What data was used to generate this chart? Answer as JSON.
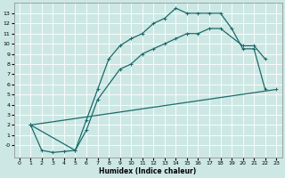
{
  "xlabel": "Humidex (Indice chaleur)",
  "xlim": [
    -0.5,
    23.5
  ],
  "ylim": [
    -1.2,
    14
  ],
  "yticks": [
    0,
    1,
    2,
    3,
    4,
    5,
    6,
    7,
    8,
    9,
    10,
    11,
    12,
    13
  ],
  "ytick_labels": [
    "-0",
    "1",
    "2",
    "3",
    "4",
    "5",
    "6",
    "7",
    "8",
    "9",
    "10",
    "11",
    "12",
    "13"
  ],
  "xticks": [
    0,
    1,
    2,
    3,
    4,
    5,
    6,
    7,
    8,
    9,
    10,
    11,
    12,
    13,
    14,
    15,
    16,
    17,
    18,
    19,
    20,
    21,
    22,
    23
  ],
  "xtick_labels": [
    "0",
    "1",
    "2",
    "3",
    "4",
    "5",
    "6",
    "7",
    "8",
    "9",
    "10",
    "11",
    "12",
    "13",
    "14",
    "15",
    "16",
    "17",
    "18",
    "19",
    "20",
    "21",
    "22",
    "23"
  ],
  "bg_color": "#cde8e4",
  "grid_color": "#ffffff",
  "line_color": "#1a6b6b",
  "line1_x": [
    1,
    2,
    3,
    4,
    5,
    6,
    7,
    8,
    9,
    10,
    11,
    12,
    13,
    14,
    15,
    16,
    17,
    18,
    19,
    20,
    21,
    22
  ],
  "line1_y": [
    2,
    -0.5,
    -0.7,
    -0.6,
    -0.5,
    2.5,
    5.5,
    8.5,
    9.8,
    10.5,
    11,
    12,
    12.5,
    13.5,
    13,
    13,
    13,
    13,
    11.5,
    9.5,
    9.5,
    5.5
  ],
  "line2_x": [
    1,
    5,
    6,
    7,
    9,
    10,
    11,
    12,
    13,
    14,
    15,
    16,
    17,
    18,
    20,
    21,
    22
  ],
  "line2_y": [
    2,
    -0.5,
    1.5,
    4.5,
    7.5,
    8,
    9,
    9.5,
    10,
    10.5,
    11,
    11,
    11.5,
    11.5,
    9.8,
    9.8,
    8.5
  ],
  "line3_x": [
    1,
    23
  ],
  "line3_y": [
    2,
    5.5
  ]
}
